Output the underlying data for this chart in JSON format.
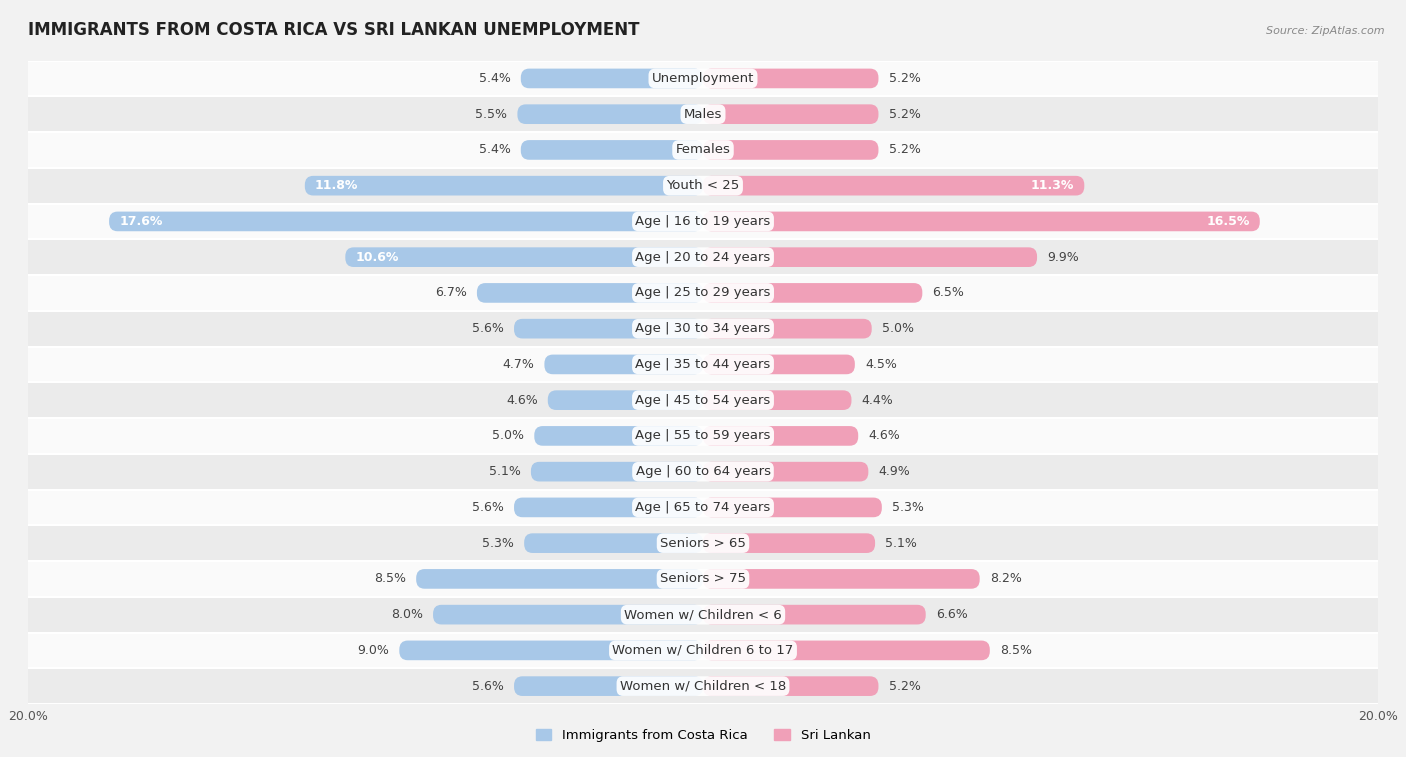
{
  "title": "IMMIGRANTS FROM COSTA RICA VS SRI LANKAN UNEMPLOYMENT",
  "source": "Source: ZipAtlas.com",
  "categories": [
    "Unemployment",
    "Males",
    "Females",
    "Youth < 25",
    "Age | 16 to 19 years",
    "Age | 20 to 24 years",
    "Age | 25 to 29 years",
    "Age | 30 to 34 years",
    "Age | 35 to 44 years",
    "Age | 45 to 54 years",
    "Age | 55 to 59 years",
    "Age | 60 to 64 years",
    "Age | 65 to 74 years",
    "Seniors > 65",
    "Seniors > 75",
    "Women w/ Children < 6",
    "Women w/ Children 6 to 17",
    "Women w/ Children < 18"
  ],
  "costa_rica": [
    5.4,
    5.5,
    5.4,
    11.8,
    17.6,
    10.6,
    6.7,
    5.6,
    4.7,
    4.6,
    5.0,
    5.1,
    5.6,
    5.3,
    8.5,
    8.0,
    9.0,
    5.6
  ],
  "sri_lanka": [
    5.2,
    5.2,
    5.2,
    11.3,
    16.5,
    9.9,
    6.5,
    5.0,
    4.5,
    4.4,
    4.6,
    4.9,
    5.3,
    5.1,
    8.2,
    6.6,
    8.5,
    5.2
  ],
  "costa_rica_color": "#a8c8e8",
  "sri_lanka_color": "#f0a0b8",
  "background_color": "#f2f2f2",
  "row_bg_light": "#fafafa",
  "row_bg_dark": "#ebebeb",
  "max_value": 20.0,
  "bar_height": 0.55,
  "label_fontsize": 9.5,
  "title_fontsize": 12,
  "value_fontsize": 9
}
